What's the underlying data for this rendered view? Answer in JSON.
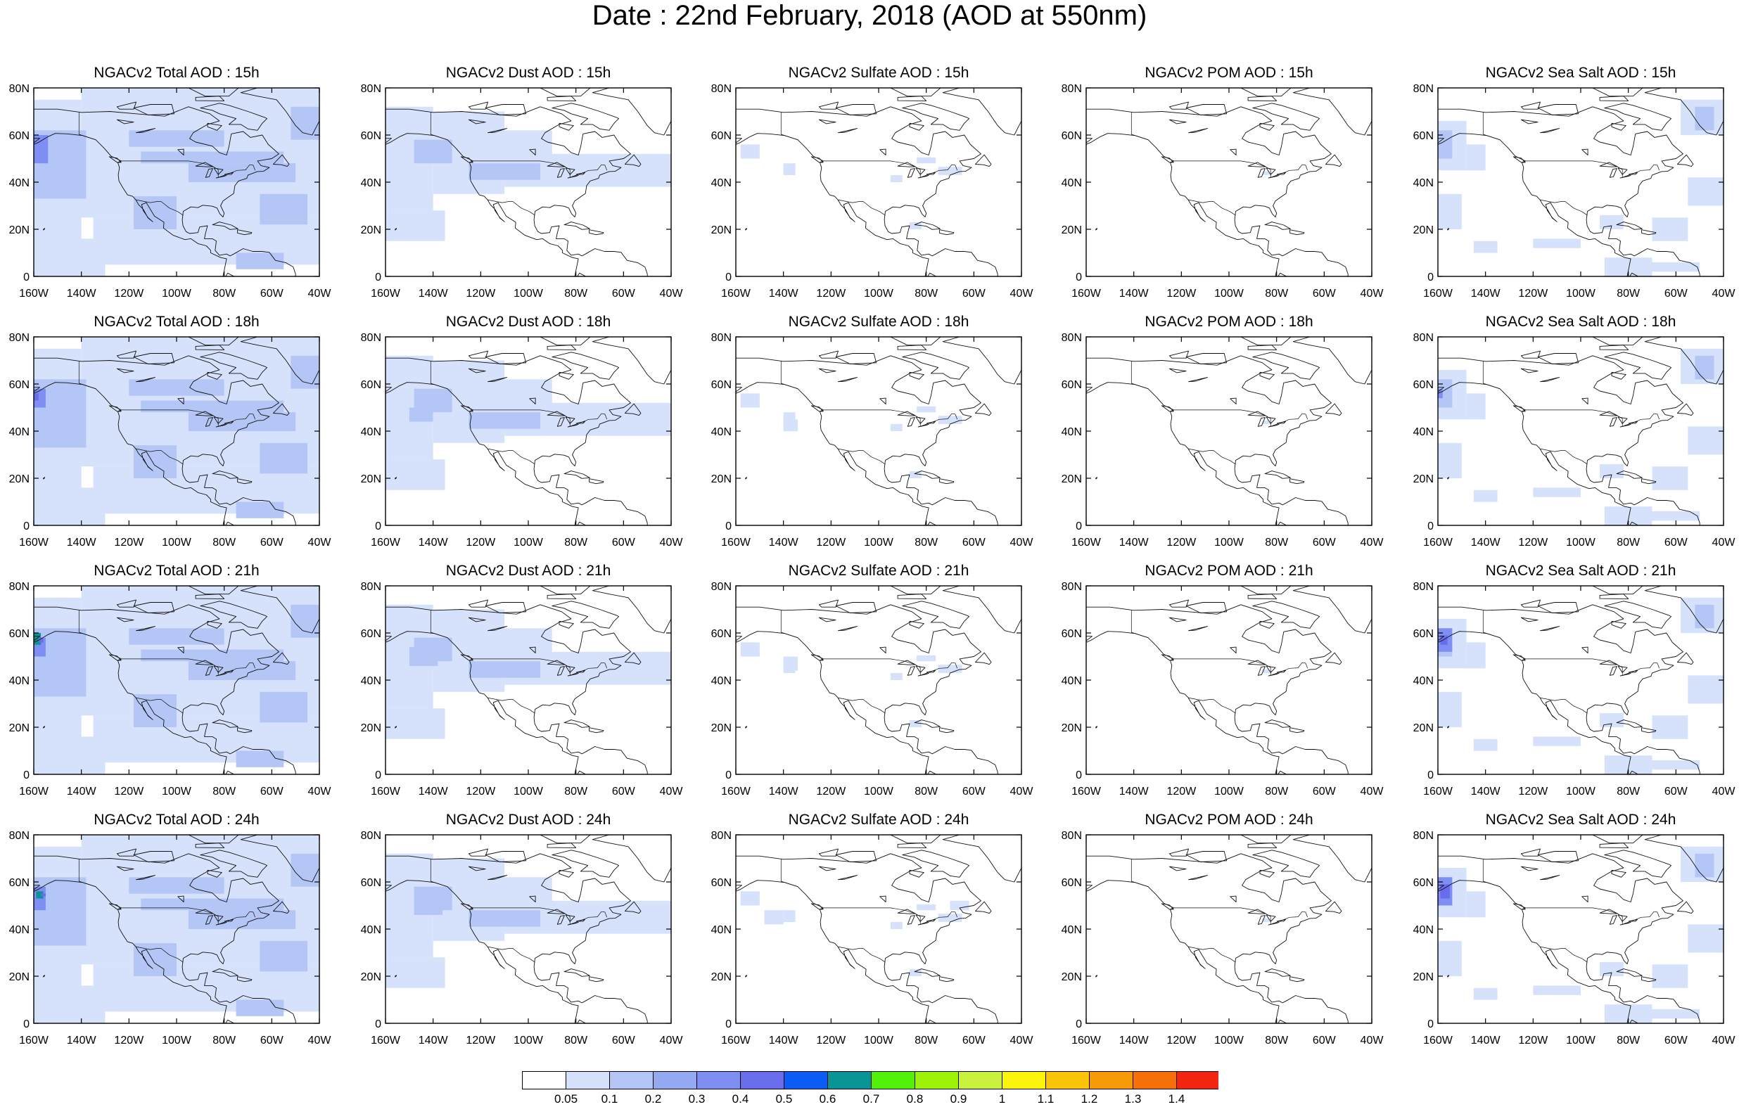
{
  "title": "Date : 22nd February, 2018 (AOD at 550nm)",
  "axes": {
    "lat_labels": [
      "0",
      "20N",
      "40N",
      "60N",
      "80N"
    ],
    "lon_labels": [
      "160W",
      "140W",
      "120W",
      "100W",
      "80W",
      "60W",
      "40W"
    ]
  },
  "species": [
    {
      "key": "total",
      "name": "Total"
    },
    {
      "key": "dust",
      "name": "Dust"
    },
    {
      "key": "sulfate",
      "name": "Sulfate"
    },
    {
      "key": "pom",
      "name": "POM"
    },
    {
      "key": "seasalt",
      "name": "Sea Salt"
    }
  ],
  "hours": [
    "15h",
    "18h",
    "21h",
    "24h"
  ],
  "panel_titles": [
    [
      "NGACv2 Total AOD : 15h",
      "NGACv2 Dust AOD : 15h",
      "NGACv2 Sulfate AOD : 15h",
      "NGACv2 POM AOD : 15h",
      "NGACv2 Sea Salt AOD : 15h"
    ],
    [
      "NGACv2 Total AOD : 18h",
      "NGACv2 Dust AOD : 18h",
      "NGACv2 Sulfate AOD : 18h",
      "NGACv2 POM AOD : 18h",
      "NGACv2 Sea Salt AOD : 18h"
    ],
    [
      "NGACv2 Total AOD : 21h",
      "NGACv2 Dust AOD : 21h",
      "NGACv2 Sulfate AOD : 21h",
      "NGACv2 POM AOD : 21h",
      "NGACv2 Sea Salt AOD : 21h"
    ],
    [
      "NGACv2 Total AOD : 24h",
      "NGACv2 Dust AOD : 24h",
      "NGACv2 Sulfate AOD : 24h",
      "NGACv2 POM AOD : 24h",
      "NGACv2 Sea Salt  AOD : 24h"
    ]
  ],
  "colorbar": {
    "labels": [
      "0.05",
      "0.1",
      "0.2",
      "0.3",
      "0.4",
      "0.5",
      "0.6",
      "0.7",
      "0.8",
      "0.9",
      "1",
      "1.1",
      "1.2",
      "1.3",
      "1.4"
    ],
    "colors": [
      "#ffffff",
      "#d6e1fb",
      "#b4c6f6",
      "#93aaf2",
      "#7f8ef2",
      "#6a6cee",
      "#0c5df5",
      "#0a9594",
      "#52f00a",
      "#9ef20a",
      "#c9f23f",
      "#fbf50b",
      "#fbc40b",
      "#f79a09",
      "#f66f08",
      "#f4250f"
    ]
  },
  "map_colors": {
    "light": "#d6e1fb",
    "medium": "#b4c6f6",
    "dark": "#7f8ef2",
    "green": "#0a9594",
    "coast": "#111111"
  }
}
